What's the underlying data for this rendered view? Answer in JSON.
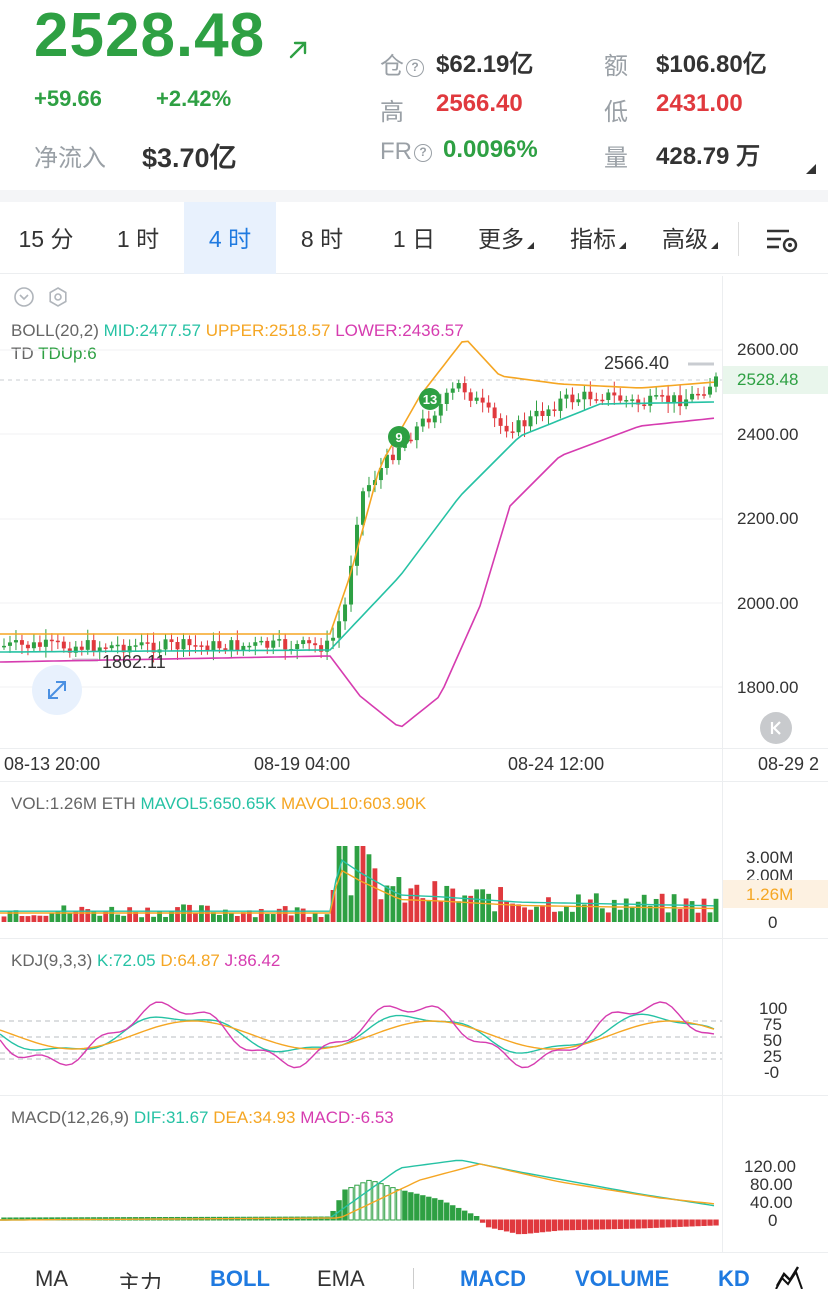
{
  "header": {
    "price": "2528.48",
    "change_abs": "+59.66",
    "change_pct": "+2.42%",
    "netflow_label": "净流入",
    "netflow_value": "$3.70亿",
    "stats": {
      "cang_label": "仓",
      "cang_value": "$62.19亿",
      "e_label": "额",
      "e_value": "$106.80亿",
      "gao_label": "高",
      "gao_value": "2566.40",
      "di_label": "低",
      "di_value": "2431.00",
      "fr_label": "FR",
      "fr_value": "0.0096%",
      "liang_label": "量",
      "liang_value": "428.79 万"
    },
    "qmark": "?"
  },
  "tabs": [
    {
      "label": "15 分"
    },
    {
      "label": "1 时"
    },
    {
      "label": "4 时"
    },
    {
      "label": "8 时"
    },
    {
      "label": "1 日"
    },
    {
      "label": "更多"
    },
    {
      "label": "指标"
    },
    {
      "label": "高级"
    }
  ],
  "main_chart": {
    "boll_name": "BOLL(20,2)",
    "boll_mid": "MID:2477.57",
    "boll_upper": "UPPER:2518.57",
    "boll_lower": "LOWER:2436.57",
    "td_name": "TD",
    "td_up": "TDUp:6",
    "y_labels": [
      "2600.00",
      "2400.00",
      "2200.00",
      "2000.00",
      "1800.00"
    ],
    "current_price_tag": "2528.48",
    "high_marker": "2566.40",
    "low_marker": "1862.11",
    "td_badges": [
      "9",
      "13"
    ],
    "x_labels": [
      "08-13 20:00",
      "08-19 04:00",
      "08-24 12:00",
      "08-29 2"
    ]
  },
  "vol_chart": {
    "name": "VOL:1.26M ETH",
    "mavol5": "MAVOL5:650.65K",
    "mavol10": "MAVOL10:603.90K",
    "y_labels": [
      "3.00M",
      "2.00M",
      "0"
    ],
    "current_tag": "1.26M"
  },
  "kdj_chart": {
    "name": "KDJ(9,3,3)",
    "k": "K:72.05",
    "d": "D:64.87",
    "j": "J:86.42",
    "y_labels": [
      "100",
      "75",
      "50",
      "25",
      "-0"
    ]
  },
  "macd_chart": {
    "name": "MACD(12,26,9)",
    "dif": "DIF:31.67",
    "dea": "DEA:34.93",
    "macd": "MACD:-6.53",
    "y_labels": [
      "120.00",
      "80.00",
      "40.00",
      "0"
    ]
  },
  "bottom_tabs": [
    {
      "label": "MA",
      "active": false
    },
    {
      "label": "主力",
      "active": false
    },
    {
      "label": "BOLL",
      "active": true
    },
    {
      "label": "EMA",
      "active": false
    },
    {
      "label": "MACD",
      "active": true
    },
    {
      "label": "VOLUME",
      "active": true
    },
    {
      "label": "KD",
      "active": true
    }
  ],
  "colors": {
    "up": "#2ea043",
    "down": "#e0393e",
    "mid": "#26c2a4",
    "upper": "#f5a623",
    "lower": "#d63cb0",
    "accent": "#1f7ae0"
  },
  "icons": [
    "arrow-up-right-icon",
    "question-icon",
    "chart-settings-icon",
    "collapse-icon",
    "settings-icon",
    "expand-icon",
    "scroll-end-icon",
    "draw-line-icon"
  ]
}
